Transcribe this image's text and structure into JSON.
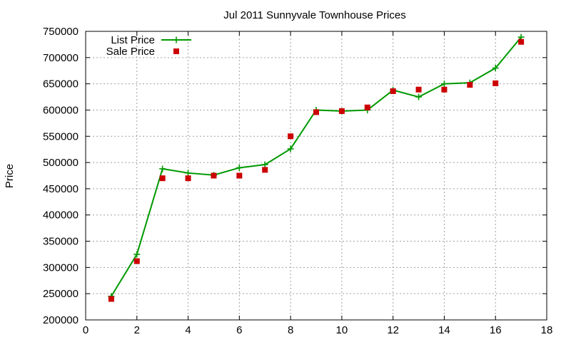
{
  "chart_data": {
    "type": "line",
    "title": "Jul 2011 Sunnyvale Townhouse Prices",
    "xlabel": "",
    "ylabel": "Price",
    "xlim": [
      0,
      18
    ],
    "ylim": [
      200000,
      750000
    ],
    "x_ticks": [
      0,
      2,
      4,
      6,
      8,
      10,
      12,
      14,
      16,
      18
    ],
    "y_ticks": [
      200000,
      250000,
      300000,
      350000,
      400000,
      450000,
      500000,
      550000,
      600000,
      650000,
      700000,
      750000
    ],
    "grid": true,
    "legend_position": "top-left",
    "series": [
      {
        "name": "List Price",
        "style": "line-plus",
        "color": "#009900",
        "x": [
          1,
          2,
          3,
          4,
          5,
          6,
          7,
          8,
          9,
          10,
          11,
          12,
          13,
          14,
          15,
          16,
          17
        ],
        "values": [
          245000,
          325000,
          488000,
          480000,
          476000,
          490000,
          496000,
          526000,
          600000,
          598000,
          600000,
          638000,
          625000,
          650000,
          652000,
          680000,
          739000
        ]
      },
      {
        "name": "Sale Price",
        "style": "square",
        "color": "#cc0000",
        "x": [
          1,
          2,
          3,
          4,
          5,
          6,
          7,
          8,
          9,
          10,
          11,
          12,
          13,
          14,
          15,
          16,
          17
        ],
        "values": [
          240000,
          312000,
          470000,
          470000,
          475000,
          475000,
          486000,
          550000,
          596000,
          598000,
          605000,
          636000,
          639000,
          639000,
          648000,
          651000,
          730000
        ]
      }
    ]
  }
}
